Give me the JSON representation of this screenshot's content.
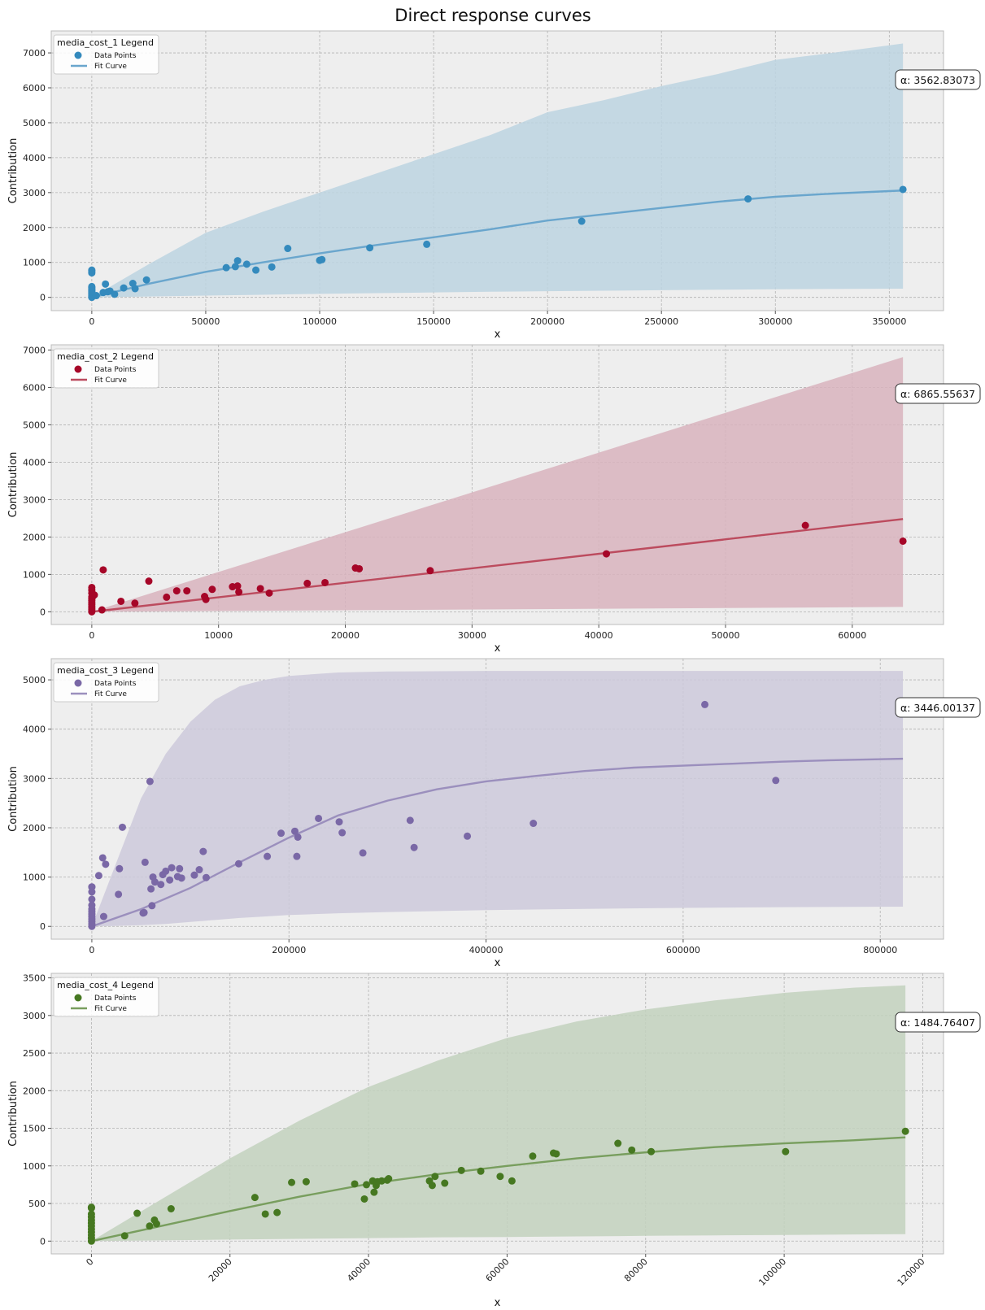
{
  "figure": {
    "title": "Direct response curves"
  },
  "chart_data": [
    {
      "type": "scatter",
      "legend_title": "media_cost_1 Legend",
      "legend_entries": [
        "Data Points",
        "Fit Curve"
      ],
      "legend_position": "top-left",
      "annotation": "α: 3562.83073",
      "xlabel": "x",
      "ylabel": "Contribution",
      "xlim": [
        -17800,
        373800
      ],
      "ylim": [
        -380,
        7630
      ],
      "xticks": [
        0,
        50000,
        100000,
        150000,
        200000,
        250000,
        300000,
        350000
      ],
      "yticks": [
        0,
        1000,
        2000,
        3000,
        4000,
        5000,
        6000,
        7000
      ],
      "grid": true,
      "colors": {
        "points": "#348abd",
        "line": "#6aa6cd",
        "band": "#bcd3e1"
      },
      "fit": {
        "x": [
          0,
          25000,
          50000,
          75000,
          100000,
          125000,
          150000,
          175000,
          200000,
          225000,
          250000,
          275000,
          300000,
          325000,
          356000
        ],
        "y": [
          0,
          390,
          730,
          1000,
          1260,
          1500,
          1720,
          1950,
          2200,
          2380,
          2560,
          2740,
          2880,
          2970,
          3060
        ]
      },
      "band": {
        "x": [
          0,
          25000,
          50000,
          75000,
          100000,
          125000,
          150000,
          175000,
          200000,
          225000,
          250000,
          275000,
          300000,
          325000,
          356000
        ],
        "upper": [
          0,
          950,
          1850,
          2450,
          3000,
          3550,
          4100,
          4650,
          5300,
          5650,
          6050,
          6400,
          6800,
          7000,
          7270
        ],
        "lower": [
          0,
          25,
          50,
          75,
          100,
          120,
          140,
          160,
          175,
          190,
          205,
          220,
          230,
          240,
          250
        ]
      },
      "points": {
        "x": [
          0,
          0,
          0,
          0,
          0,
          0,
          0,
          0,
          0,
          0,
          0,
          0,
          0,
          0,
          2000,
          5000,
          6000,
          7000,
          8000,
          10000,
          14000,
          18000,
          19000,
          24000,
          59000,
          63000,
          64000,
          68000,
          72000,
          79000,
          86000,
          100000,
          101000,
          122000,
          147000,
          215000,
          288000,
          356000
        ],
        "y": [
          0,
          30,
          60,
          100,
          130,
          160,
          190,
          220,
          250,
          280,
          310,
          700,
          750,
          780,
          50,
          140,
          380,
          160,
          180,
          90,
          270,
          400,
          250,
          500,
          850,
          880,
          1050,
          950,
          780,
          870,
          1400,
          1060,
          1080,
          1420,
          1520,
          2180,
          2820,
          3090
        ]
      }
    },
    {
      "type": "scatter",
      "legend_title": "media_cost_2 Legend",
      "legend_entries": [
        "Data Points",
        "Fit Curve"
      ],
      "legend_position": "top-left",
      "annotation": "α: 6865.55637",
      "xlabel": "x",
      "ylabel": "Contribution",
      "xlim": [
        -3200,
        67200
      ],
      "ylim": [
        -340,
        7140
      ],
      "xticks": [
        0,
        10000,
        20000,
        30000,
        40000,
        50000,
        60000
      ],
      "yticks": [
        0,
        1000,
        2000,
        3000,
        4000,
        5000,
        6000,
        7000
      ],
      "grid": true,
      "colors": {
        "points": "#a60628",
        "line": "#bc4b5e",
        "band": "#d8b3bd"
      },
      "fit": {
        "x": [
          0,
          64000
        ],
        "y": [
          0,
          2480
        ]
      },
      "band": {
        "x": [
          0,
          64000
        ],
        "upper": [
          0,
          6810
        ],
        "lower": [
          0,
          130
        ]
      },
      "points": {
        "x": [
          0,
          0,
          0,
          0,
          0,
          0,
          0,
          0,
          0,
          0,
          0,
          0,
          100,
          200,
          800,
          900,
          2300,
          3400,
          4500,
          5900,
          6700,
          7500,
          8900,
          9000,
          9500,
          11100,
          11500,
          11600,
          13300,
          14000,
          17000,
          18400,
          20800,
          21100,
          26700,
          40600,
          56300,
          64000
        ],
        "y": [
          0,
          50,
          100,
          150,
          200,
          250,
          300,
          350,
          400,
          500,
          580,
          650,
          420,
          450,
          50,
          1120,
          280,
          230,
          820,
          390,
          560,
          560,
          410,
          330,
          600,
          670,
          690,
          530,
          620,
          500,
          760,
          780,
          1170,
          1150,
          1100,
          1550,
          2310,
          1890
        ]
      }
    },
    {
      "type": "scatter",
      "legend_title": "media_cost_3 Legend",
      "legend_entries": [
        "Data Points",
        "Fit Curve"
      ],
      "legend_position": "top-left",
      "annotation": "α: 3446.00137",
      "xlabel": "x",
      "ylabel": "Contribution",
      "xlim": [
        -41200,
        864200
      ],
      "ylim": [
        -260,
        5430
      ],
      "xticks": [
        0,
        200000,
        400000,
        600000,
        800000
      ],
      "yticks": [
        0,
        1000,
        2000,
        3000,
        4000,
        5000
      ],
      "grid": true,
      "colors": {
        "points": "#7a68a6",
        "line": "#9b8fbd",
        "band": "#cdc9da"
      },
      "fit": {
        "x": [
          0,
          50000,
          100000,
          150000,
          200000,
          250000,
          300000,
          350000,
          400000,
          450000,
          500000,
          550000,
          600000,
          650000,
          700000,
          750000,
          823000
        ],
        "y": [
          0,
          350,
          780,
          1300,
          1800,
          2250,
          2550,
          2780,
          2940,
          3050,
          3150,
          3220,
          3260,
          3300,
          3340,
          3370,
          3400
        ]
      },
      "band": {
        "x": [
          0,
          25000,
          50000,
          75000,
          100000,
          125000,
          150000,
          175000,
          200000,
          250000,
          300000,
          400000,
          500000,
          600000,
          700000,
          823000
        ],
        "upper": [
          0,
          1300,
          2600,
          3500,
          4150,
          4600,
          4870,
          5000,
          5080,
          5150,
          5170,
          5180,
          5180,
          5180,
          5180,
          5180
        ],
        "lower": [
          0,
          10,
          25,
          50,
          90,
          130,
          170,
          200,
          230,
          265,
          290,
          330,
          355,
          375,
          390,
          400
        ]
      },
      "points": {
        "x": [
          0,
          0,
          0,
          0,
          0,
          0,
          0,
          0,
          0,
          0,
          0,
          0,
          0,
          7000,
          11000,
          12000,
          14000,
          27000,
          28000,
          31000,
          52000,
          53000,
          54000,
          59000,
          60000,
          61000,
          62000,
          64000,
          70000,
          72000,
          75000,
          79000,
          81000,
          87000,
          89000,
          91000,
          104000,
          109000,
          113000,
          116000,
          149000,
          178000,
          192000,
          206000,
          208000,
          209000,
          230000,
          251000,
          254000,
          275000,
          323000,
          327000,
          381000,
          448000,
          622000,
          694000
        ],
        "y": [
          0,
          50,
          100,
          150,
          200,
          250,
          300,
          350,
          430,
          550,
          700,
          800,
          800,
          1030,
          1390,
          200,
          1260,
          650,
          1170,
          2010,
          270,
          280,
          1300,
          2940,
          760,
          420,
          1000,
          900,
          850,
          1050,
          1120,
          940,
          1190,
          1010,
          1170,
          980,
          1040,
          1150,
          1520,
          990,
          1270,
          1420,
          1890,
          1930,
          1420,
          1810,
          2190,
          2120,
          1900,
          1490,
          2150,
          1600,
          1830,
          2090,
          4500,
          2960
        ]
      }
    },
    {
      "type": "scatter",
      "legend_title": "media_cost_4 Legend",
      "legend_entries": [
        "Data Points",
        "Fit Curve"
      ],
      "legend_position": "top-left",
      "annotation": "α: 1484.76407",
      "xlabel": "x",
      "ylabel": "Contribution",
      "xlim": [
        -5800,
        123000
      ],
      "ylim": [
        -170,
        3560
      ],
      "xticks": [
        0,
        20000,
        40000,
        60000,
        80000,
        100000,
        120000
      ],
      "yticks": [
        0,
        500,
        1000,
        1500,
        2000,
        2500,
        3000,
        3500
      ],
      "grid": true,
      "colors": {
        "points": "#467821",
        "line": "#789e5e",
        "band": "#c2d1bd"
      },
      "fit": {
        "x": [
          0,
          10000,
          20000,
          30000,
          40000,
          50000,
          60000,
          70000,
          80000,
          90000,
          100000,
          110000,
          117500
        ],
        "y": [
          0,
          200,
          400,
          590,
          760,
          890,
          1000,
          1100,
          1180,
          1250,
          1300,
          1340,
          1380
        ]
      },
      "band": {
        "x": [
          0,
          10000,
          20000,
          30000,
          40000,
          50000,
          60000,
          70000,
          80000,
          90000,
          100000,
          110000,
          117500
        ],
        "upper": [
          0,
          550,
          1100,
          1600,
          2050,
          2400,
          2700,
          2920,
          3080,
          3200,
          3300,
          3370,
          3400
        ],
        "lower": [
          0,
          10,
          20,
          30,
          40,
          50,
          55,
          62,
          70,
          76,
          82,
          88,
          92
        ]
      },
      "points": {
        "x": [
          0,
          0,
          0,
          0,
          0,
          0,
          0,
          0,
          0,
          0,
          0,
          0,
          4800,
          6600,
          8400,
          9100,
          9400,
          11500,
          23600,
          25100,
          26800,
          28900,
          31000,
          38000,
          39400,
          39700,
          40600,
          40800,
          41100,
          41300,
          41900,
          42700,
          42900,
          48800,
          49200,
          49600,
          51000,
          53400,
          56200,
          59000,
          60700,
          63700,
          66700,
          67100,
          76000,
          78000,
          80800,
          100200,
          117500
        ],
        "y": [
          0,
          40,
          80,
          120,
          160,
          200,
          240,
          280,
          320,
          360,
          440,
          450,
          70,
          370,
          200,
          280,
          230,
          430,
          580,
          360,
          380,
          780,
          790,
          760,
          560,
          750,
          800,
          650,
          740,
          790,
          800,
          810,
          830,
          800,
          740,
          860,
          770,
          940,
          930,
          860,
          800,
          1130,
          1170,
          1160,
          1300,
          1210,
          1190,
          1190,
          1460
        ]
      }
    }
  ]
}
